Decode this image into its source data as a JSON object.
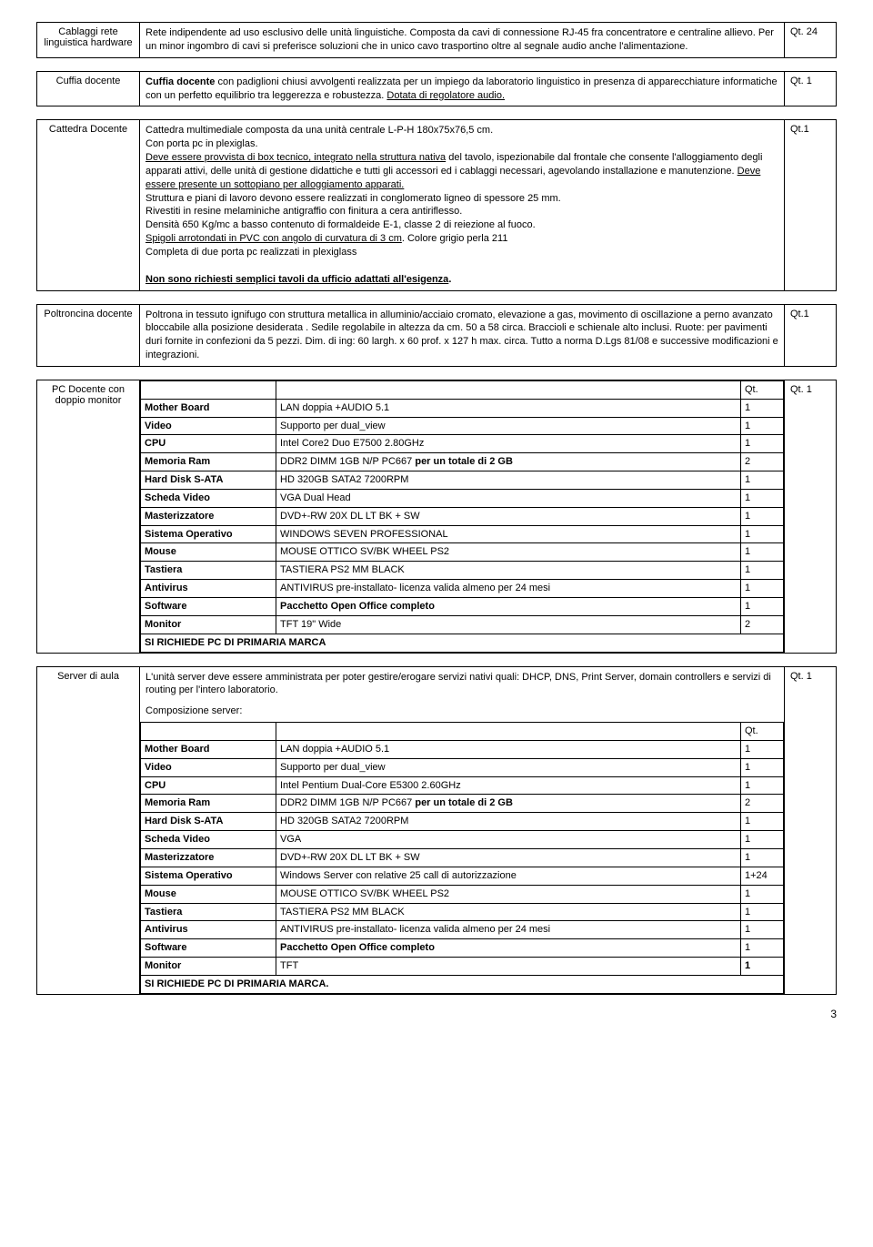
{
  "row1": {
    "label": "Cablaggi rete linguistica hardware",
    "text": "Rete indipendente ad uso esclusivo delle unità linguistiche. Composta da cavi di connessione RJ-45 fra concentratore e centraline allievo. Per un minor ingombro di cavi si preferisce soluzioni che in unico cavo trasportino oltre al segnale audio anche l'alimentazione.",
    "qt": "Qt. 24"
  },
  "row2": {
    "label": "Cuffia docente",
    "text_a": "Cuffia docente",
    "text_b": " con padiglioni chiusi avvolgenti  realizzata per un impiego da laboratorio linguistico in presenza di apparecchiature informatiche con un perfetto equilibrio tra leggerezza e robustezza. ",
    "text_c": "Dotata di regolatore audio.",
    "qt": "Qt. 1"
  },
  "row3": {
    "label": "Cattedra Docente",
    "p1": "Cattedra multimediale composta da una unità centrale L-P-H 180x75x76,5 cm.",
    "p2": "Con porta pc in plexiglas.",
    "p3a": "Deve essere provvista di box tecnico, integrato nella struttura nativa",
    "p3b": " del tavolo, ispezionabile dal frontale che consente l'alloggiamento degli apparati attivi, delle unità di gestione didattiche e tutti gli accessori ed i cablaggi necessari, agevolando installazione e manutenzione. ",
    "p3c": "Deve essere presente un sottopiano per alloggiamento apparati.",
    "p4": "Struttura e piani di lavoro devono essere realizzati in conglomerato ligneo di spessore 25 mm.",
    "p5": "Rivestiti in resine melaminiche antigraffio con finitura a cera antiriflesso.",
    "p6": "Densità 650 Kg/mc a basso contenuto di formaldeide E-1, classe 2 di reiezione al fuoco.",
    "p7a": "Spigoli arrotondati in PVC con angolo di curvatura di 3 cm",
    "p7b": ". Colore grigio perla 211",
    "p8": "Completa di due porta pc realizzati in plexiglass",
    "p9": "Non sono richiesti semplici tavoli da ufficio adattati all'esigenza",
    "qt": "Qt.1"
  },
  "row4": {
    "label": "Poltroncina docente",
    "text": "Poltrona in tessuto ignifugo con struttura metallica in alluminio/acciaio cromato, elevazione a gas, movimento di oscillazione a perno avanzato bloccabile alla posizione desiderata . Sedile regolabile in altezza da cm. 50 a 58 circa. Braccioli e schienale alto inclusi. Ruote: per pavimenti duri fornite in confezioni da 5 pezzi. Dim. di ing: 60 largh. x 60 prof. x 127 h max. circa. Tutto a norma D.Lgs 81/08 e successive modificazioni e integrazioni.",
    "qt": "Qt.1"
  },
  "row5": {
    "label": "PC Docente con doppio monitor",
    "qthead": "Qt.",
    "rows": [
      [
        "Mother Board",
        "LAN doppia +AUDIO 5.1",
        "1"
      ],
      [
        "Video",
        "Supporto per dual_view",
        "1"
      ],
      [
        "CPU",
        "Intel Core2 Duo E7500 2.80GHz",
        "1"
      ],
      [
        "Memoria Ram",
        "DDR2 DIMM 1GB N/P PC667 <b>per un totale di 2 GB</b>",
        "2"
      ],
      [
        "Hard Disk S-ATA",
        "HD 320GB SATA2 7200RPM",
        "1"
      ],
      [
        "Scheda Video",
        "VGA  Dual Head",
        "1"
      ],
      [
        "Masterizzatore",
        "DVD+-RW 20X DL LT BK + SW",
        "1"
      ],
      [
        "Sistema Operativo",
        "WINDOWS SEVEN PROFESSIONAL",
        "1"
      ],
      [
        "Mouse",
        "MOUSE OTTICO SV/BK WHEEL PS2",
        "1"
      ],
      [
        "Tastiera",
        "TASTIERA PS2 MM BLACK",
        "1"
      ],
      [
        "Antivirus",
        "ANTIVIRUS pre-installato- licenza valida almeno per 24 mesi",
        "1"
      ],
      [
        "Software",
        "<b>Pacchetto Open Office completo</b>",
        "1"
      ],
      [
        "Monitor",
        "TFT 19\" Wide",
        "2"
      ]
    ],
    "footer": "SI RICHIEDE PC DI PRIMARIA MARCA",
    "qt": "Qt. 1"
  },
  "row6": {
    "label": "Server di aula",
    "intro": "L'unità server deve essere amministrata per poter gestire/erogare servizi nativi quali: DHCP, DNS, Print Server, domain controllers e servizi di routing per l'intero laboratorio.",
    "comp": "Composizione server:",
    "qthead": "Qt.",
    "rows": [
      [
        "Mother Board",
        "LAN doppia +AUDIO 5.1",
        "1"
      ],
      [
        "Video",
        "Supporto per dual_view",
        "1"
      ],
      [
        "CPU",
        "Intel Pentium Dual-Core E5300 2.60GHz",
        "1"
      ],
      [
        "Memoria Ram",
        "DDR2 DIMM 1GB N/P PC667 <b>per un totale di 2 GB</b>",
        "2"
      ],
      [
        "Hard Disk S-ATA",
        "HD 320GB SATA2 7200RPM",
        "1"
      ],
      [
        "Scheda Video",
        "VGA",
        "1"
      ],
      [
        "Masterizzatore",
        "DVD+-RW 20X DL LT BK + SW",
        "1"
      ],
      [
        "Sistema Operativo",
        "Windows Server con relative 25 call di autorizzazione",
        "1+24"
      ],
      [
        "Mouse",
        "MOUSE OTTICO SV/BK WHEEL PS2",
        "1"
      ],
      [
        "Tastiera",
        "TASTIERA PS2 MM BLACK",
        "1"
      ],
      [
        "Antivirus",
        "ANTIVIRUS pre-installato- licenza valida almeno per 24 mesi",
        "1"
      ],
      [
        "Software",
        "<b>Pacchetto Open Office completo</b>",
        "1"
      ],
      [
        "Monitor",
        "TFT",
        "<b>1</b>"
      ]
    ],
    "footer": "SI RICHIEDE PC DI PRIMARIA MARCA.",
    "qt": "Qt. 1"
  },
  "pagenum": "3"
}
